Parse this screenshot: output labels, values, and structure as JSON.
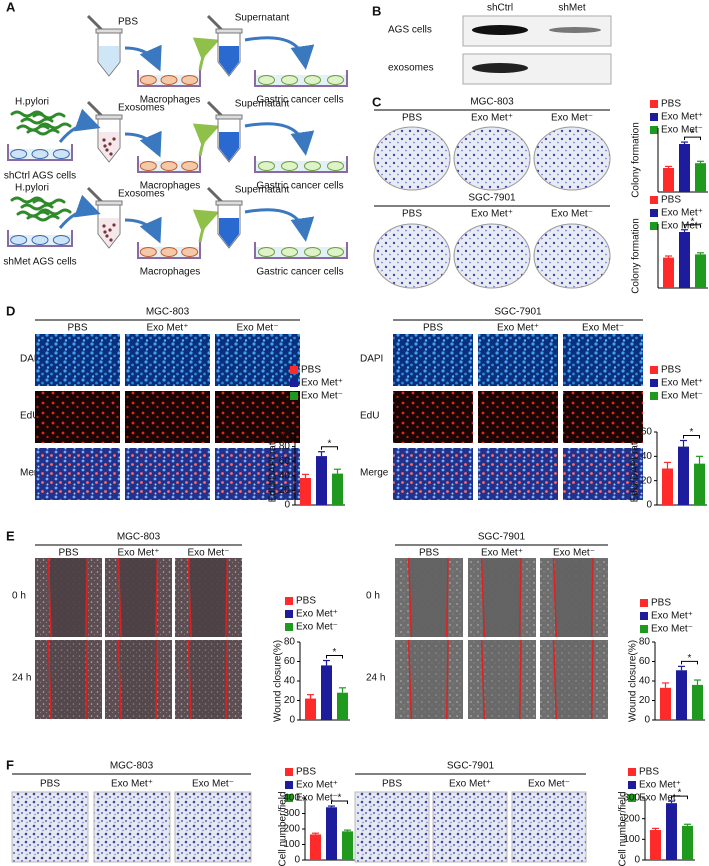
{
  "panel_a": {
    "label": "A",
    "rows": [
      {
        "treatment": "PBS",
        "cells": "Macrophages",
        "supernatant": "Supernatant",
        "target": "Gastric cancer cells"
      },
      {
        "bacteria": "H.pylori",
        "donor": "shCtrl AGS cells",
        "treatment": "Exosomes",
        "cells": "Macrophages",
        "supernatant": "Supernatant",
        "target": "Gastric cancer cells"
      },
      {
        "bacteria": "H.pylori",
        "donor": "shMet  AGS cells",
        "treatment": "Exosomes",
        "cells": "Macrophages",
        "supernatant": "Supernatant",
        "target": "Gastric cancer cells"
      }
    ]
  },
  "panel_b": {
    "label": "B",
    "columns": [
      "shCtrl",
      "shMet"
    ],
    "rows": [
      "AGS cells",
      "exosomes"
    ]
  },
  "panel_c": {
    "label": "C",
    "blocks": [
      {
        "title": "MGC-803",
        "columns": [
          "PBS",
          "Exo Met⁺",
          "Exo Met⁻"
        ],
        "chart": {
          "type": "bar",
          "ylabel": "Colony formation",
          "categories": [
            "PBS",
            "Exo Met⁺",
            "Exo Met⁻"
          ],
          "values": [
            75,
            150,
            90
          ],
          "errors": [
            5,
            6,
            6
          ],
          "colors": [
            "#ff2a2a",
            "#1c1c9c",
            "#1f9a1f"
          ],
          "ylim": [
            0,
            200
          ],
          "significance": "*"
        }
      },
      {
        "title": "SGC-7901",
        "columns": [
          "PBS",
          "Exo Met⁺",
          "Exo Met⁻"
        ],
        "chart": {
          "type": "bar",
          "ylabel": "Colony formation",
          "categories": [
            "PBS",
            "Exo Met⁺",
            "Exo Met⁻"
          ],
          "values": [
            95,
            175,
            105
          ],
          "errors": [
            5,
            7,
            5
          ],
          "colors": [
            "#ff2a2a",
            "#1c1c9c",
            "#1f9a1f"
          ],
          "ylim": [
            0,
            200
          ],
          "significance": "*"
        }
      }
    ]
  },
  "panel_d": {
    "label": "D",
    "blocks": [
      {
        "title": "MGC-803",
        "columns": [
          "PBS",
          "Exo Met⁺",
          "Exo Met⁻"
        ],
        "rows": [
          "DAPI",
          "EdU",
          "Merge"
        ],
        "chart": {
          "type": "bar",
          "ylabel": "EdU/DAPI ratio",
          "categories": [
            "PBS",
            "Exo Met⁺",
            "Exo Met⁻"
          ],
          "values": [
            37,
            67,
            43
          ],
          "errors": [
            5,
            6,
            6
          ],
          "colors": [
            "#ff2a2a",
            "#1c1c9c",
            "#1f9a1f"
          ],
          "ylim": [
            0,
            100
          ],
          "yticks": [
            0,
            20,
            40,
            60,
            80,
            100
          ],
          "significance": "*"
        }
      },
      {
        "title": "SGC-7901",
        "columns": [
          "PBS",
          "Exo Met⁺",
          "Exo Met⁻"
        ],
        "rows": [
          "DAPI",
          "EdU",
          "Merge"
        ],
        "chart": {
          "type": "bar",
          "ylabel": "EdU/DAPI ratio",
          "categories": [
            "PBS",
            "Exo Met⁺",
            "Exo Met⁻"
          ],
          "values": [
            30,
            48,
            34
          ],
          "errors": [
            5,
            5,
            6
          ],
          "colors": [
            "#ff2a2a",
            "#1c1c9c",
            "#1f9a1f"
          ],
          "ylim": [
            0,
            60
          ],
          "yticks": [
            0,
            20,
            40,
            60
          ],
          "significance": "*"
        }
      }
    ]
  },
  "panel_e": {
    "label": "E",
    "blocks": [
      {
        "title": "MGC-803",
        "columns": [
          "PBS",
          "Exo Met⁺",
          "Exo Met⁻"
        ],
        "rows": [
          "0 h",
          "24 h"
        ],
        "chart": {
          "type": "bar",
          "ylabel": "Wound closure(%)",
          "categories": [
            "PBS",
            "Exo Met⁺",
            "Exo Met⁻"
          ],
          "values": [
            22,
            56,
            28
          ],
          "errors": [
            4,
            5,
            5
          ],
          "colors": [
            "#ff2a2a",
            "#1c1c9c",
            "#1f9a1f"
          ],
          "ylim": [
            0,
            80
          ],
          "yticks": [
            0,
            20,
            40,
            60,
            80
          ],
          "significance": "*"
        }
      },
      {
        "title": "SGC-7901",
        "columns": [
          "PBS",
          "Exo Met⁺",
          "Exo Met⁻"
        ],
        "rows": [
          "0 h",
          "24 h"
        ],
        "chart": {
          "type": "bar",
          "ylabel": "Wound closure(%)",
          "categories": [
            "PBS",
            "Exo Met⁺",
            "Exo Met⁻"
          ],
          "values": [
            33,
            51,
            36
          ],
          "errors": [
            5,
            4,
            5
          ],
          "colors": [
            "#ff2a2a",
            "#1c1c9c",
            "#1f9a1f"
          ],
          "ylim": [
            0,
            80
          ],
          "yticks": [
            0,
            20,
            40,
            60,
            80
          ],
          "significance": "*"
        }
      }
    ]
  },
  "panel_f": {
    "label": "F",
    "blocks": [
      {
        "title": "MGC-803",
        "columns": [
          "PBS",
          "Exo Met⁺",
          "Exo Met⁻"
        ],
        "chart": {
          "type": "bar",
          "ylabel": "Cell number/field",
          "categories": [
            "PBS",
            "Exo Met⁺",
            "Exo Met⁻"
          ],
          "values": [
            165,
            340,
            185
          ],
          "errors": [
            8,
            8,
            8
          ],
          "colors": [
            "#ff2a2a",
            "#1c1c9c",
            "#1f9a1f"
          ],
          "ylim": [
            0,
            400
          ],
          "yticks": [
            0,
            100,
            200,
            300,
            400
          ],
          "significance": "*"
        }
      },
      {
        "title": "SGC-7901",
        "columns": [
          "PBS",
          "Exo Met⁺",
          "Exo Met⁻"
        ],
        "chart": {
          "type": "bar",
          "ylabel": "Cell number/field",
          "categories": [
            "PBS",
            "Exo Met⁺",
            "Exo Met⁻"
          ],
          "values": [
            145,
            275,
            165
          ],
          "errors": [
            8,
            10,
            8
          ],
          "colors": [
            "#ff2a2a",
            "#1c1c9c",
            "#1f9a1f"
          ],
          "ylim": [
            0,
            300
          ],
          "yticks": [
            0,
            100,
            200,
            300
          ],
          "significance": "*"
        }
      }
    ]
  }
}
